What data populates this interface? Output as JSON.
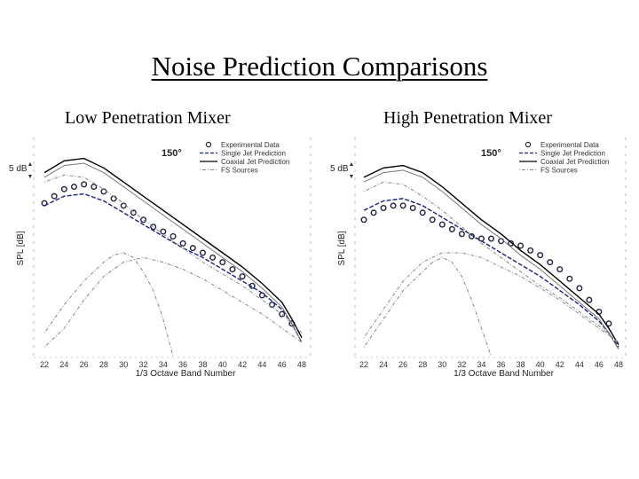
{
  "page": {
    "title": "Noise Prediction Comparisons",
    "left_subtitle": "Low Penetration Mixer",
    "right_subtitle": "High Penetration Mixer"
  },
  "colors": {
    "experimental": "#222244",
    "single_jet": "#1a237e",
    "coaxial_jet": "#000000",
    "fs_sources": "#888888"
  },
  "chart_data": [
    {
      "type": "line",
      "panel": "Low Penetration Mixer",
      "angle_label": "150°",
      "scale_label": "5 dB",
      "xlabel": "1/3 Octave Band Number",
      "ylabel": "SPL [dB]",
      "xlim": [
        22,
        48
      ],
      "ylim": [
        0,
        44
      ],
      "x_ticks": [
        "22",
        "24",
        "26",
        "28",
        "30",
        "32",
        "34",
        "36",
        "38",
        "40",
        "42",
        "44",
        "46",
        "48"
      ],
      "legend": [
        "Experimental Data",
        "Single Jet Prediction",
        "Coaxial Jet Prediction",
        "FS Sources"
      ],
      "series": [
        {
          "name": "Experimental Data",
          "style": "circles",
          "x": [
            22,
            23,
            24,
            25,
            26,
            27,
            28,
            29,
            30,
            31,
            32,
            33,
            34,
            35,
            36,
            37,
            38,
            39,
            40,
            41,
            42,
            43,
            44,
            45,
            46,
            47
          ],
          "y": [
            32.5,
            34,
            35.5,
            36,
            36.5,
            36,
            35,
            33.5,
            32,
            30.5,
            29,
            27.5,
            26.5,
            25.5,
            24,
            23,
            22,
            21,
            20,
            18.5,
            17,
            15,
            13,
            11,
            9,
            7
          ]
        },
        {
          "name": "Single Jet Prediction",
          "style": "dashed",
          "x": [
            22,
            24,
            26,
            28,
            30,
            32,
            34,
            36,
            38,
            40,
            42,
            44,
            46,
            47,
            48
          ],
          "y": [
            32,
            34,
            34.5,
            33,
            30.5,
            28,
            25.5,
            23,
            21,
            18.5,
            16,
            13.5,
            10,
            7,
            3
          ]
        },
        {
          "name": "Coaxial Jet Prediction",
          "style": "solid",
          "x": [
            22,
            24,
            26,
            28,
            30,
            32,
            34,
            36,
            38,
            40,
            42,
            44,
            46,
            47,
            48
          ],
          "y": [
            39,
            41.5,
            42,
            40,
            37,
            34,
            31,
            28,
            25,
            22,
            19,
            15.5,
            11.5,
            8,
            4
          ]
        },
        {
          "name": "Coaxial Upper (gray)",
          "style": "solid-gray",
          "x": [
            22,
            24,
            26,
            28,
            30,
            32,
            34,
            36,
            38,
            40,
            42,
            44,
            46,
            47,
            48
          ],
          "y": [
            38,
            40.5,
            41,
            39,
            36,
            33,
            30,
            27,
            24,
            21,
            18,
            14.5,
            10.5,
            7,
            3
          ]
        },
        {
          "name": "FS Sources",
          "style": "dashdot",
          "x": [
            22,
            24,
            26,
            28,
            30,
            32,
            34,
            36,
            38,
            40,
            42,
            44,
            46,
            48
          ],
          "y": [
            37,
            38.5,
            38,
            35.5,
            32.5,
            29,
            26,
            23,
            20,
            17.5,
            15,
            12,
            9,
            5
          ]
        },
        {
          "name": "FS Sources (peak 1)",
          "style": "dashdot",
          "x": [
            22,
            24,
            26,
            28,
            29,
            30,
            31,
            32,
            33,
            34,
            35
          ],
          "y": [
            5,
            11,
            16,
            20,
            21.5,
            22,
            21,
            18,
            14,
            8,
            0
          ]
        },
        {
          "name": "FS Sources (peak 2)",
          "style": "dashdot",
          "x": [
            22,
            24,
            26,
            28,
            30,
            32,
            34,
            36,
            38,
            40,
            42,
            44,
            46,
            48
          ],
          "y": [
            2,
            6,
            12,
            17,
            20,
            21,
            20,
            18.5,
            16.5,
            14,
            11.5,
            9,
            6,
            3
          ]
        }
      ]
    },
    {
      "type": "line",
      "panel": "High Penetration Mixer",
      "angle_label": "150°",
      "scale_label": "5 dB",
      "xlabel": "1/3 Octave Band Number",
      "ylabel": "SPL [dB]",
      "xlim": [
        22,
        48
      ],
      "ylim": [
        0,
        44
      ],
      "x_ticks": [
        "22",
        "24",
        "26",
        "28",
        "30",
        "32",
        "34",
        "36",
        "38",
        "40",
        "42",
        "44",
        "46",
        "48"
      ],
      "legend": [
        "Experimental Data",
        "Single Jet Prediction",
        "Coaxial Jet Prediction",
        "FS Sources"
      ],
      "series": [
        {
          "name": "Experimental Data",
          "style": "circles",
          "x": [
            22,
            23,
            24,
            25,
            26,
            27,
            28,
            29,
            30,
            31,
            32,
            33,
            34,
            35,
            36,
            37,
            38,
            39,
            40,
            41,
            42,
            43,
            44,
            45,
            46,
            47
          ],
          "y": [
            29,
            30.5,
            31.5,
            32,
            32,
            31.5,
            30.5,
            29,
            28,
            27,
            26,
            25.5,
            25,
            25,
            24.5,
            24,
            23.5,
            22.5,
            21.5,
            20,
            18.5,
            16.5,
            14.5,
            12,
            9.5,
            7
          ]
        },
        {
          "name": "Single Jet Prediction",
          "style": "dashed",
          "x": [
            22,
            24,
            26,
            28,
            30,
            32,
            34,
            36,
            38,
            40,
            42,
            44,
            46,
            47,
            48
          ],
          "y": [
            31,
            33,
            33.5,
            32,
            29.5,
            27,
            24.5,
            22,
            19.5,
            17,
            14,
            11,
            7.5,
            5,
            2
          ]
        },
        {
          "name": "Coaxial Jet Prediction",
          "style": "solid",
          "x": [
            22,
            24,
            26,
            28,
            30,
            32,
            34,
            36,
            38,
            40,
            42,
            44,
            46,
            47,
            48
          ],
          "y": [
            38,
            40,
            40.5,
            39,
            36,
            32.5,
            29,
            26,
            22.5,
            19.5,
            16,
            12.5,
            9,
            6,
            2.5
          ]
        },
        {
          "name": "Coaxial Upper (gray)",
          "style": "solid-gray",
          "x": [
            22,
            24,
            26,
            28,
            30,
            32,
            34,
            36,
            38,
            40,
            42,
            44,
            46,
            47,
            48
          ],
          "y": [
            37,
            39,
            39.5,
            38,
            35,
            31.5,
            28,
            25,
            21.5,
            18.5,
            15,
            11.5,
            8,
            5,
            1.5
          ]
        },
        {
          "name": "FS Sources",
          "style": "dashdot",
          "x": [
            22,
            24,
            26,
            28,
            30,
            32,
            34,
            36,
            38,
            40,
            42,
            44,
            46,
            48
          ],
          "y": [
            35,
            37,
            36.5,
            34,
            31,
            27.5,
            24,
            21,
            18,
            15,
            12.5,
            9.5,
            6.5,
            3
          ]
        },
        {
          "name": "FS Sources (peak 1)",
          "style": "dashdot",
          "x": [
            22,
            24,
            26,
            28,
            29,
            30,
            31,
            32,
            33,
            34,
            35
          ],
          "y": [
            2,
            8,
            14,
            18,
            20,
            21,
            20,
            17,
            12,
            6,
            0
          ]
        },
        {
          "name": "FS Sources (peak 2)",
          "style": "dashdot",
          "x": [
            22,
            24,
            26,
            28,
            30,
            32,
            34,
            36,
            38,
            40,
            42,
            44,
            46,
            48
          ],
          "y": [
            4,
            10,
            16,
            20,
            22,
            22,
            21,
            19,
            17,
            14.5,
            12,
            9,
            6,
            3
          ]
        }
      ]
    }
  ]
}
